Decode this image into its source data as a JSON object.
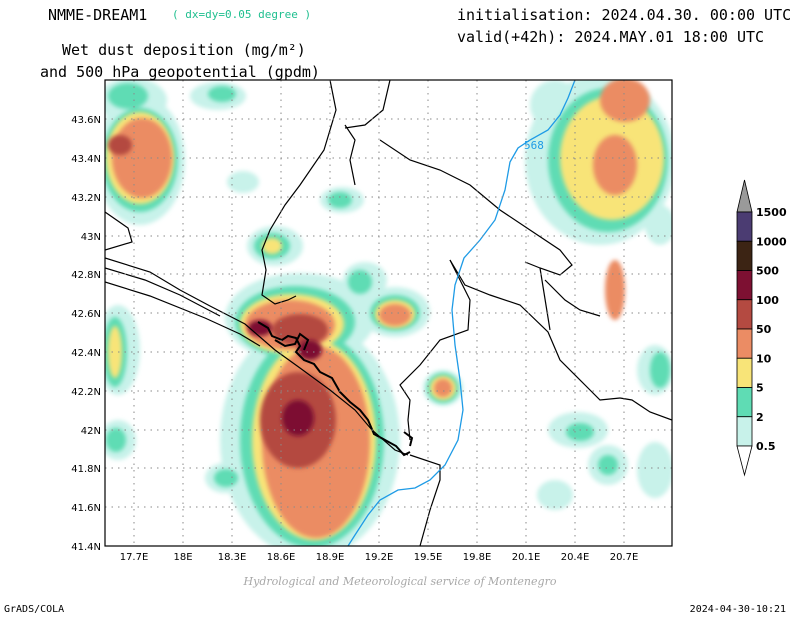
{
  "header": {
    "model_name": "NMME-DREAM1",
    "resolution": "( dx=dy=0.05 degree )",
    "title_line1": "Wet dust deposition (mg/m²)",
    "title_line2": "and 500 hPa geopotential (gpdm)",
    "initialisation": "initialisation: 2024.04.30. 00:00 UTC",
    "valid": "valid(+42h): 2024.MAY.01 18:00 UTC"
  },
  "map": {
    "lat_labels": [
      "43.6N",
      "43.4N",
      "43.2N",
      "43N",
      "42.8N",
      "42.6N",
      "42.4N",
      "42.2N",
      "42N",
      "41.8N",
      "41.6N",
      "41.4N"
    ],
    "lon_labels": [
      "17.7E",
      "18E",
      "18.3E",
      "18.6E",
      "18.9E",
      "19.2E",
      "19.5E",
      "19.8E",
      "20.1E",
      "20.4E",
      "20.7E"
    ],
    "contour_label": "568",
    "colors": {
      "c05": "#c8f2ea",
      "c2": "#5fdcb4",
      "c5": "#f8e478",
      "c10": "#eb8c64",
      "c50": "#b44a41",
      "c100": "#7d1032",
      "c500": "#3c2414",
      "c1000": "#4b3c72",
      "c1500": "#9c7ab4",
      "top": "#9a9a9a",
      "contour": "#1e9be6"
    }
  },
  "legend": {
    "labels": [
      "1500",
      "1000",
      "500",
      "100",
      "50",
      "10",
      "5",
      "2",
      "0.5"
    ]
  },
  "footer": {
    "credit": "Hydrological and Meteorological service of Montenegro",
    "software": "GrADS/COLA",
    "timestamp": "2024-04-30-10:21"
  }
}
